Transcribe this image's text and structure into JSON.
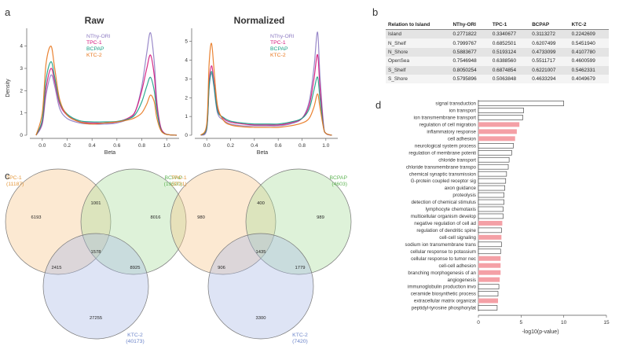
{
  "panel_letters": {
    "a": "a",
    "b": "b",
    "c": "c",
    "d": "d"
  },
  "colors": {
    "nthy": "#8e7cc3",
    "tpc1": "#d4147a",
    "bcpap": "#17a085",
    "ktc2": "#e8761d",
    "venn_tpc1": "#f6c58a",
    "venn_bcpap": "#a8dc9a",
    "venn_ktc2": "#a9b7e6",
    "bar_pink": "#f4a0a6"
  },
  "chart_data": [
    {
      "id": "density_raw",
      "type": "line",
      "title": "Raw",
      "xlabel": "Beta",
      "ylabel": "Density",
      "xlim": [
        -0.1,
        1.1
      ],
      "ylim": [
        0,
        4.8
      ],
      "xticks": [
        0.0,
        0.2,
        0.4,
        0.6,
        0.8,
        1.0
      ],
      "xtick_labels": [
        "0.0",
        "0.2",
        "0.4",
        "0.6",
        "0.8",
        "1.0"
      ],
      "yticks": [
        0,
        1,
        2,
        3,
        4
      ],
      "ytick_labels": [
        "0",
        "1",
        "2",
        "3",
        "4"
      ],
      "legend": [
        "NThy-ORI",
        "TPC-1",
        "BCPAP",
        "KTC-2"
      ],
      "series": [
        {
          "name": "NThy-ORI",
          "x": [
            -0.05,
            0.0,
            0.03,
            0.07,
            0.1,
            0.14,
            0.2,
            0.3,
            0.4,
            0.5,
            0.6,
            0.7,
            0.75,
            0.8,
            0.84,
            0.87,
            0.9,
            0.92,
            0.95,
            0.98,
            1.02,
            1.08
          ],
          "y": [
            0,
            0.5,
            1.8,
            2.7,
            2.2,
            1.2,
            0.75,
            0.55,
            0.5,
            0.5,
            0.55,
            0.75,
            1.1,
            2.2,
            3.7,
            4.6,
            3.3,
            1.6,
            0.4,
            0.1,
            0.02,
            0
          ]
        },
        {
          "name": "TPC-1",
          "x": [
            -0.05,
            0.0,
            0.03,
            0.07,
            0.1,
            0.14,
            0.2,
            0.3,
            0.4,
            0.5,
            0.6,
            0.7,
            0.75,
            0.8,
            0.84,
            0.87,
            0.9,
            0.92,
            0.95,
            0.98,
            1.02,
            1.08
          ],
          "y": [
            0,
            0.6,
            2.1,
            3.0,
            2.4,
            1.4,
            0.9,
            0.6,
            0.55,
            0.55,
            0.6,
            0.8,
            1.1,
            2.0,
            3.0,
            3.6,
            2.7,
            1.4,
            0.4,
            0.1,
            0.02,
            0
          ]
        },
        {
          "name": "BCPAP",
          "x": [
            -0.05,
            0.0,
            0.03,
            0.07,
            0.1,
            0.14,
            0.2,
            0.3,
            0.4,
            0.5,
            0.6,
            0.7,
            0.75,
            0.8,
            0.84,
            0.87,
            0.9,
            0.92,
            0.95,
            0.98,
            1.02,
            1.08
          ],
          "y": [
            0,
            0.7,
            2.5,
            3.3,
            2.6,
            1.5,
            0.95,
            0.65,
            0.6,
            0.6,
            0.62,
            0.75,
            0.95,
            1.5,
            2.2,
            2.6,
            2.0,
            1.1,
            0.3,
            0.08,
            0.02,
            0
          ]
        },
        {
          "name": "KTC-2",
          "x": [
            -0.05,
            0.0,
            0.03,
            0.07,
            0.1,
            0.14,
            0.2,
            0.3,
            0.4,
            0.5,
            0.6,
            0.7,
            0.75,
            0.8,
            0.84,
            0.87,
            0.9,
            0.92,
            0.95,
            0.98,
            1.02,
            1.08
          ],
          "y": [
            0,
            1.0,
            3.2,
            4.0,
            3.0,
            1.6,
            0.9,
            0.6,
            0.5,
            0.55,
            0.6,
            0.7,
            0.8,
            1.0,
            1.4,
            1.8,
            1.5,
            0.8,
            0.25,
            0.07,
            0.02,
            0
          ]
        }
      ]
    },
    {
      "id": "density_normalized",
      "type": "line",
      "title": "Normalized",
      "xlabel": "Beta",
      "ylabel": "",
      "xlim": [
        -0.1,
        1.1
      ],
      "ylim": [
        0,
        5.7
      ],
      "xticks": [
        0.0,
        0.2,
        0.4,
        0.6,
        0.8,
        1.0
      ],
      "xtick_labels": [
        "0.0",
        "0.2",
        "0.4",
        "0.6",
        "0.8",
        "1.0"
      ],
      "yticks": [
        0,
        1,
        2,
        3,
        4,
        5
      ],
      "ytick_labels": [
        "0",
        "1",
        "2",
        "3",
        "4",
        "5"
      ],
      "legend": [
        "NThy-ORI",
        "TPC-1",
        "BCPAP",
        "KTC-2"
      ],
      "series": [
        {
          "name": "NThy-ORI",
          "x": [
            -0.05,
            0.0,
            0.02,
            0.04,
            0.06,
            0.09,
            0.14,
            0.2,
            0.3,
            0.4,
            0.5,
            0.6,
            0.7,
            0.8,
            0.86,
            0.9,
            0.93,
            0.95,
            0.98,
            1.0,
            1.05
          ],
          "y": [
            0,
            0.3,
            2.5,
            3.3,
            2.6,
            1.2,
            0.8,
            0.6,
            0.5,
            0.5,
            0.5,
            0.5,
            0.6,
            0.9,
            1.8,
            3.6,
            5.5,
            3.2,
            0.6,
            0.1,
            0
          ]
        },
        {
          "name": "TPC-1",
          "x": [
            -0.05,
            0.0,
            0.02,
            0.04,
            0.06,
            0.09,
            0.14,
            0.2,
            0.3,
            0.4,
            0.5,
            0.6,
            0.7,
            0.8,
            0.86,
            0.9,
            0.93,
            0.95,
            0.98,
            1.0,
            1.05
          ],
          "y": [
            0,
            0.4,
            2.8,
            3.7,
            2.9,
            1.4,
            0.9,
            0.7,
            0.6,
            0.55,
            0.55,
            0.55,
            0.65,
            0.9,
            1.6,
            3.0,
            4.3,
            2.6,
            0.5,
            0.1,
            0
          ]
        },
        {
          "name": "BCPAP",
          "x": [
            -0.05,
            0.0,
            0.02,
            0.04,
            0.06,
            0.09,
            0.14,
            0.2,
            0.3,
            0.4,
            0.5,
            0.6,
            0.7,
            0.8,
            0.86,
            0.9,
            0.93,
            0.95,
            0.98,
            1.0,
            1.05
          ],
          "y": [
            0,
            0.4,
            2.6,
            3.4,
            2.7,
            1.3,
            0.95,
            0.75,
            0.65,
            0.6,
            0.6,
            0.6,
            0.7,
            0.9,
            1.4,
            2.4,
            3.1,
            2.0,
            0.45,
            0.1,
            0
          ]
        },
        {
          "name": "KTC-2",
          "x": [
            -0.05,
            0.0,
            0.02,
            0.04,
            0.06,
            0.09,
            0.14,
            0.2,
            0.3,
            0.4,
            0.5,
            0.6,
            0.7,
            0.8,
            0.86,
            0.9,
            0.93,
            0.95,
            0.98,
            1.0,
            1.05
          ],
          "y": [
            0,
            0.6,
            3.8,
            4.9,
            3.6,
            1.6,
            0.8,
            0.55,
            0.45,
            0.42,
            0.42,
            0.42,
            0.5,
            0.65,
            0.9,
            1.5,
            2.2,
            1.5,
            0.4,
            0.1,
            0
          ]
        }
      ]
    },
    {
      "id": "relation_table",
      "type": "table",
      "columns": [
        "Relation to Island",
        "NThy-ORI",
        "TPC-1",
        "BCPAP",
        "KTC-2"
      ],
      "rows": [
        [
          "Island",
          "0.2771822",
          "0.3340677",
          "0.3113272",
          "0.2242609"
        ],
        [
          "N_Shelf",
          "0.7999767",
          "0.6852501",
          "0.6207499",
          "0.5451940"
        ],
        [
          "N_Shore",
          "0.5883677",
          "0.5193124",
          "0.4733099",
          "0.4107780"
        ],
        [
          "OpenSea",
          "0.7546948",
          "0.6388560",
          "0.5511717",
          "0.4600599"
        ],
        [
          "S_Shelf",
          "0.8050254",
          "0.6874854",
          "0.6221007",
          "0.5462331"
        ],
        [
          "S_Shore",
          "0.5795896",
          "0.5063848",
          "0.4633294",
          "0.4049679"
        ]
      ]
    },
    {
      "id": "venn_left",
      "type": "venn",
      "sets": [
        {
          "name": "TPC-1",
          "count_label": "(11187)"
        },
        {
          "name": "BCPAP",
          "count_label": "(19520)"
        },
        {
          "name": "KTC-2",
          "count_label": "(40173)"
        }
      ],
      "regions": {
        "tpc1_only": 6193,
        "bcpap_only": 8016,
        "ktc2_only": 27255,
        "tpc1_bcpap": 1001,
        "tpc1_ktc2": 2415,
        "bcpap_ktc2": 8925,
        "all": 1578
      }
    },
    {
      "id": "venn_right",
      "type": "venn",
      "sets": [
        {
          "name": "TPC-1",
          "count_label": "(3721)"
        },
        {
          "name": "BCPAP",
          "count_label": "(4603)"
        },
        {
          "name": "KTC-2",
          "count_label": "(7420)"
        }
      ],
      "regions": {
        "tpc1_only": 980,
        "bcpap_only": 989,
        "ktc2_only": 3300,
        "tpc1_bcpap": 400,
        "tpc1_ktc2": 906,
        "bcpap_ktc2": 1779,
        "all": 1435
      }
    },
    {
      "id": "go_bar",
      "type": "bar",
      "orientation": "horizontal",
      "xlabel": "-log10(p-value)",
      "xlim": [
        0,
        15
      ],
      "xticks": [
        0,
        5,
        10,
        15
      ],
      "xtick_labels": [
        "0",
        "5",
        "10",
        "15"
      ],
      "categories": [
        "signal transduction",
        "ion transport",
        "ion transmembrane transport",
        "regulation of cell migration",
        "inflammatory response",
        "cell adhesion",
        "neurological system process",
        "regulation of membrane potenti",
        "chloride transport",
        "chloride transmembrane transpo",
        "chemical synaptic transmission",
        "G-protein coupled receptor sig",
        "axon guidance",
        "proteolysis",
        "detection of chemical stimulus",
        "lymphocyte chemotaxis",
        "multicellular organism develop",
        "negative regulation of cell ad",
        "regulation of dendritic spine",
        "cell-cell signaling",
        "sodium ion transmembrane trans",
        "cellular response to potassium",
        "cellular response to tumor nec",
        "cell-cell adhesion",
        "branching morphogenesis of an",
        "angiogenesis",
        "immunoglobulin production invo",
        "ceramide biosynthetic process",
        "extracellular matrix organizat",
        "peptidyl-tyrosine phosphorylat"
      ],
      "values": [
        10.0,
        5.3,
        5.2,
        4.8,
        4.5,
        4.3,
        4.1,
        3.9,
        3.6,
        3.5,
        3.3,
        3.2,
        3.1,
        3.0,
        3.0,
        2.9,
        2.9,
        2.8,
        2.7,
        2.7,
        2.7,
        2.6,
        2.6,
        2.6,
        2.6,
        2.5,
        2.4,
        2.3,
        2.3,
        2.2
      ],
      "highlighted": [
        false,
        false,
        false,
        true,
        true,
        true,
        false,
        false,
        false,
        false,
        false,
        false,
        false,
        false,
        false,
        false,
        false,
        true,
        false,
        true,
        false,
        false,
        true,
        true,
        true,
        true,
        false,
        false,
        true,
        false
      ]
    }
  ]
}
